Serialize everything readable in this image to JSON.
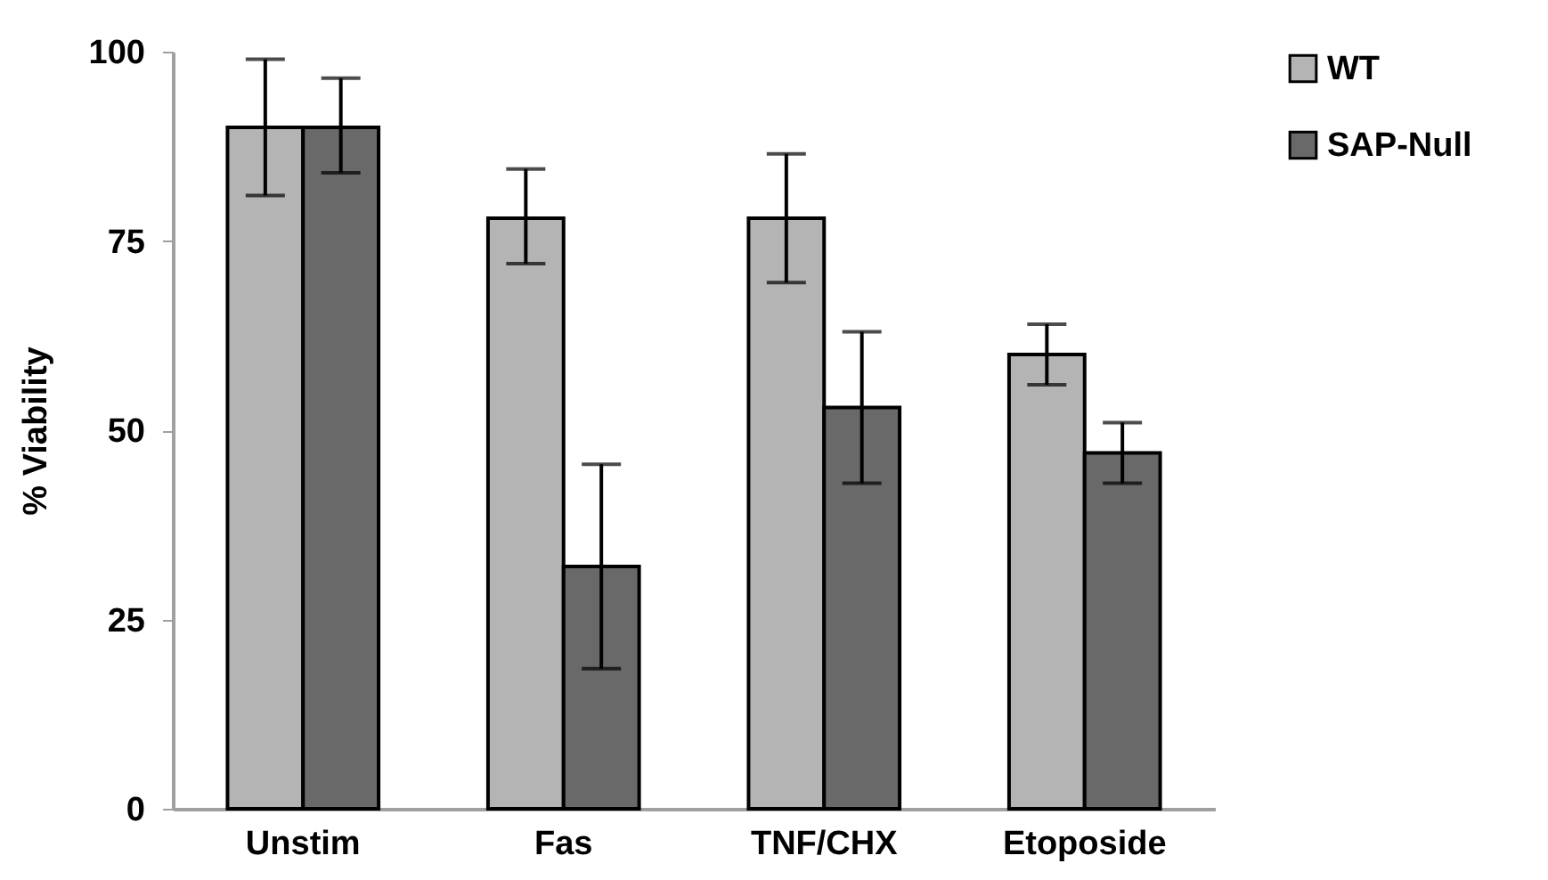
{
  "chart_data": {
    "type": "bar",
    "ylabel": "% Viability",
    "categories": [
      "Unstim",
      "Fas",
      "TNF/CHX",
      "Etoposide"
    ],
    "series": [
      {
        "name": "WT",
        "color": "#b4b4b4",
        "values": [
          90,
          78,
          78,
          60
        ],
        "errors": [
          [
            81,
            99
          ],
          [
            72,
            84.5
          ],
          [
            69.5,
            86.5
          ],
          [
            56,
            64
          ]
        ]
      },
      {
        "name": "SAP-Null",
        "color": "#696969",
        "values": [
          90,
          32,
          53,
          47
        ],
        "errors": [
          [
            84,
            96.5
          ],
          [
            18.5,
            45.5
          ],
          [
            43,
            63
          ],
          [
            43,
            51
          ]
        ]
      }
    ],
    "ylim": [
      0,
      100
    ],
    "yticks": [
      0,
      25,
      50,
      75,
      100
    ],
    "grid": false,
    "legend": "right"
  }
}
